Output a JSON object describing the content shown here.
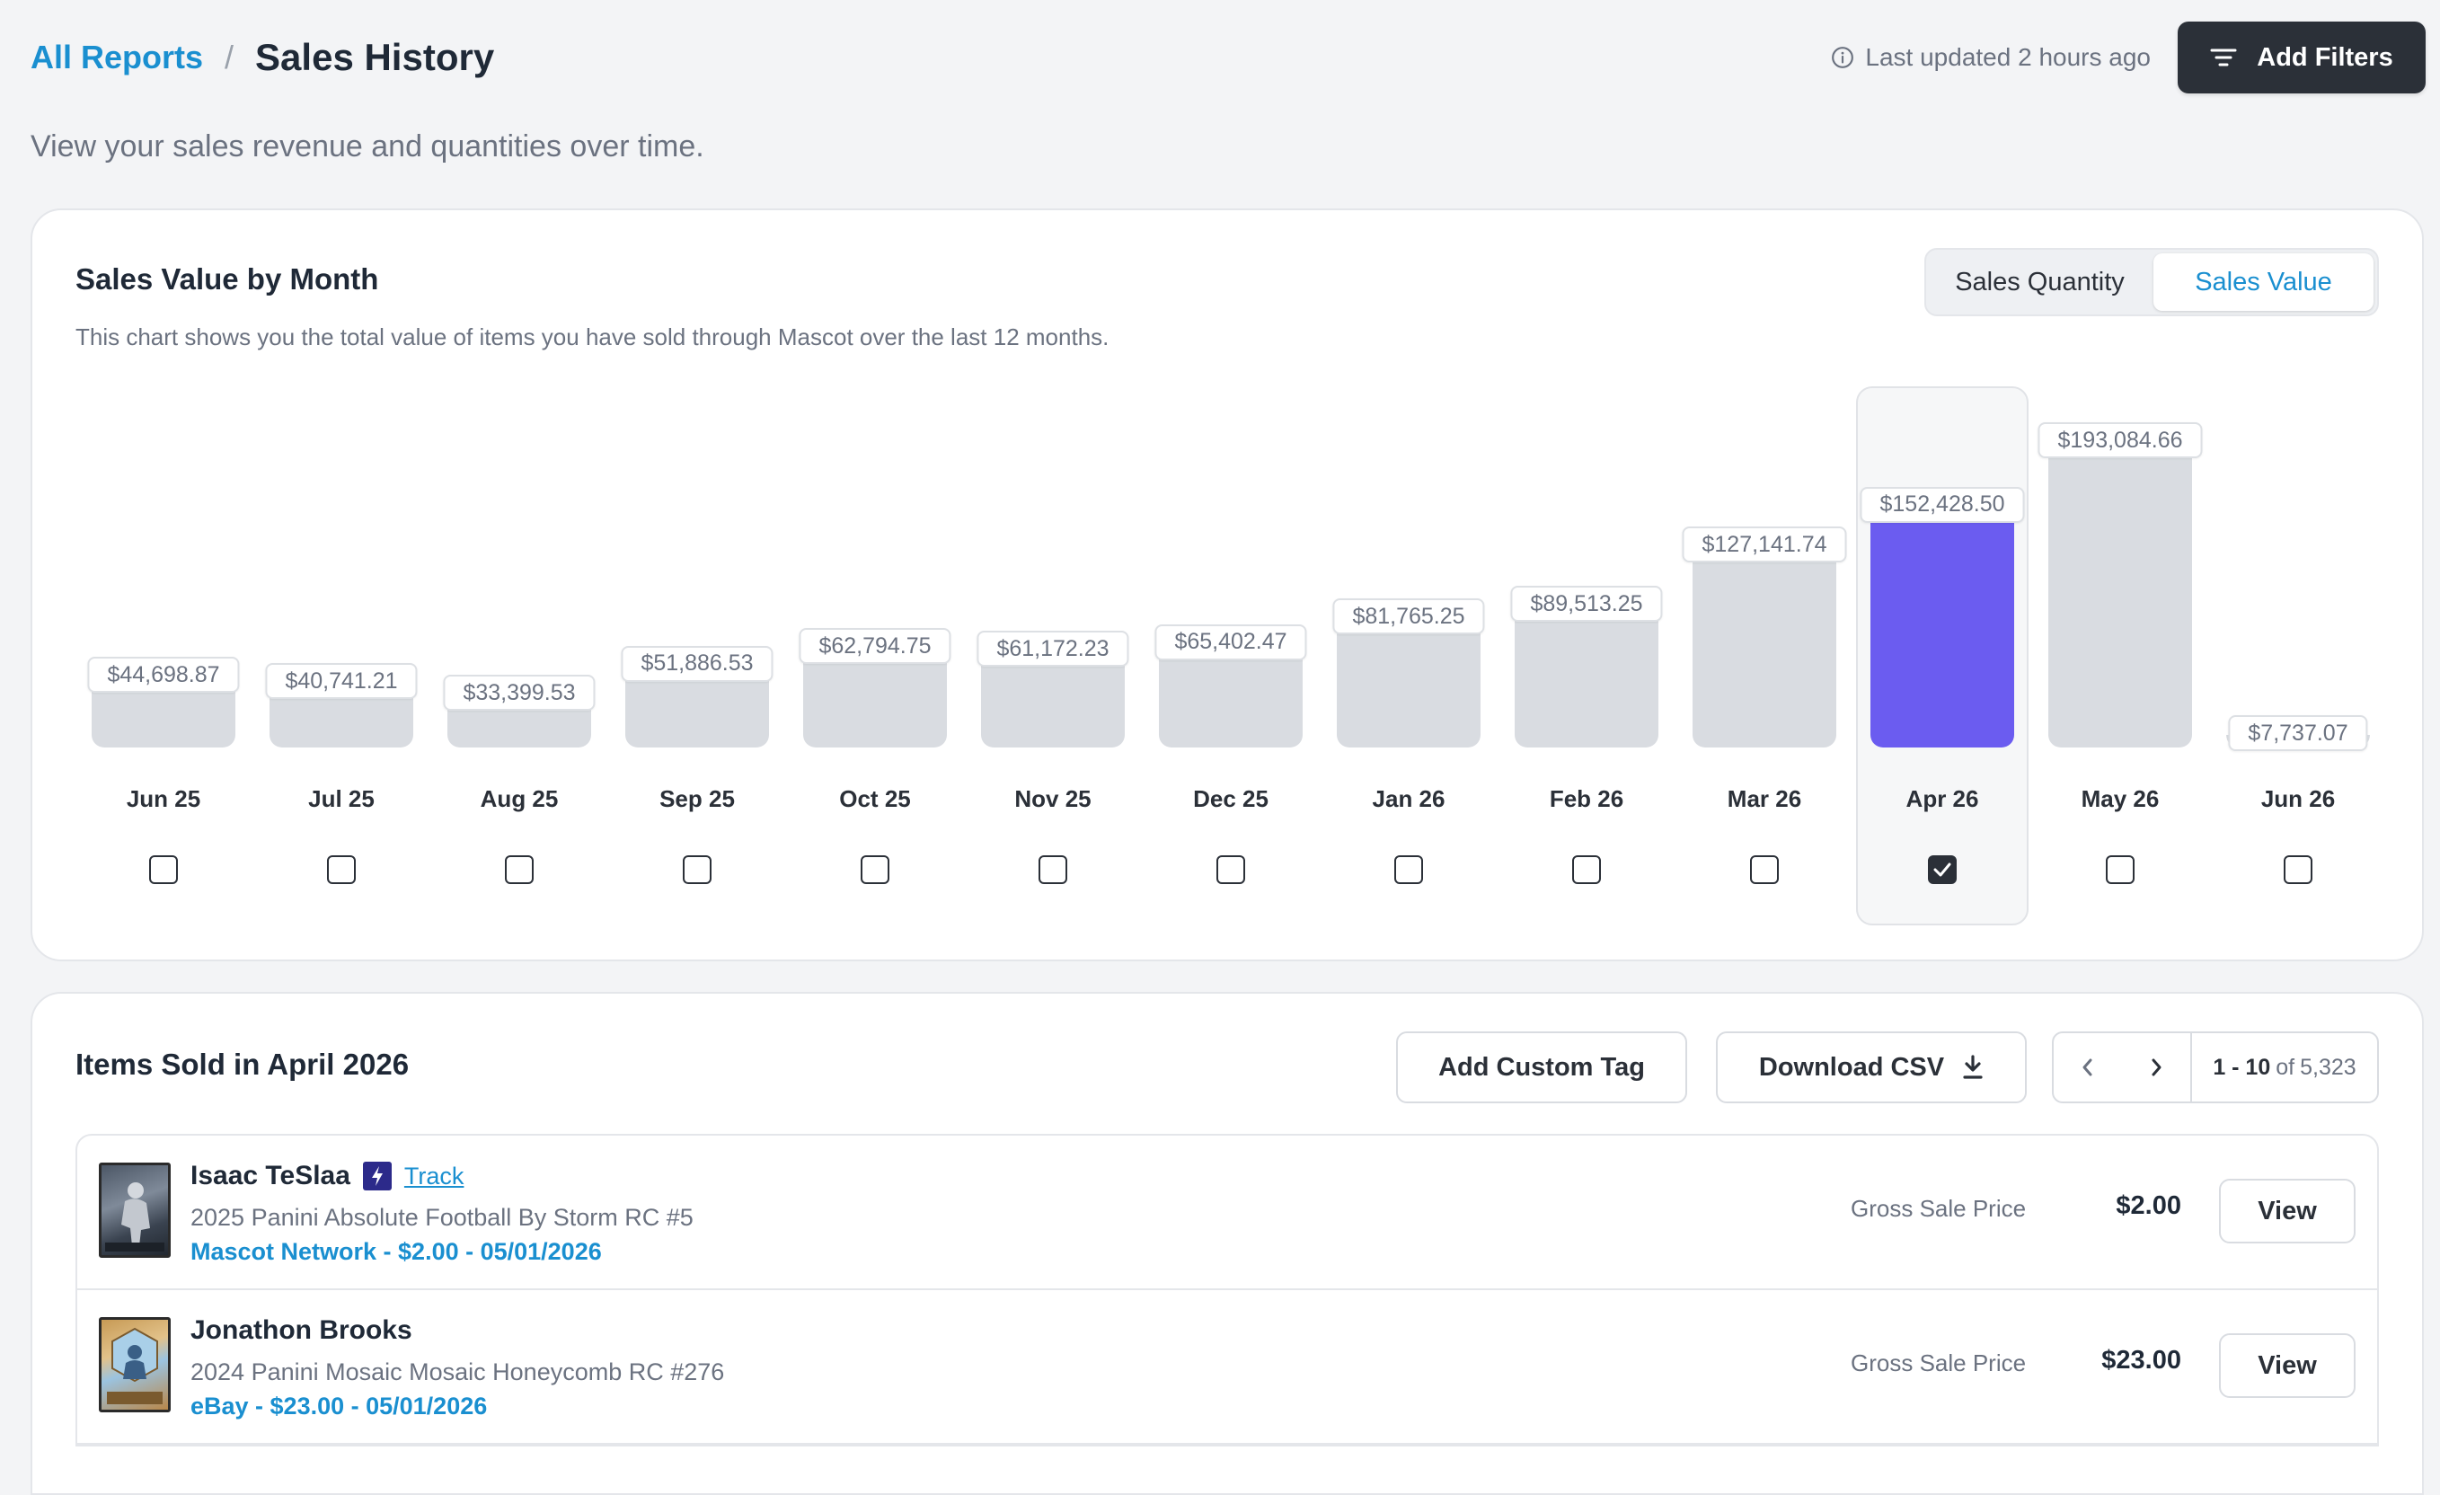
{
  "header": {
    "breadcrumb_link": "All Reports",
    "breadcrumb_sep": "/",
    "title": "Sales History",
    "last_updated": "Last updated 2 hours ago",
    "add_filters": "Add Filters",
    "subtitle": "View your sales revenue and quantities over time."
  },
  "chart_card": {
    "title": "Sales Value by Month",
    "description": "This chart shows you the total value of items you have sold through Mascot over the last 12 months.",
    "toggle": {
      "quantity": "Sales Quantity",
      "value": "Sales Value",
      "active": "value"
    }
  },
  "chart_data": {
    "type": "bar",
    "categories": [
      "Jun 25",
      "Jul 25",
      "Aug 25",
      "Sep 25",
      "Oct 25",
      "Nov 25",
      "Dec 25",
      "Jan 26",
      "Feb 26",
      "Mar 26",
      "Apr 26",
      "May 26",
      "Jun 26"
    ],
    "values": [
      44698.87,
      40741.21,
      33399.53,
      51886.53,
      62794.75,
      61172.23,
      65402.47,
      81765.25,
      89513.25,
      127141.74,
      152428.5,
      193084.66,
      7737.07
    ],
    "labels": [
      "$44,698.87",
      "$40,741.21",
      "$33,399.53",
      "$51,886.53",
      "$62,794.75",
      "$61,172.23",
      "$65,402.47",
      "$81,765.25",
      "$89,513.25",
      "$127,141.74",
      "$152,428.50",
      "$193,084.66",
      "$7,737.07"
    ],
    "selected_index": 10,
    "colors": {
      "default": "#d9dce1",
      "selected": "#6b5cf0"
    },
    "legend": "none",
    "grid": false
  },
  "items_card": {
    "title": "Items Sold in April 2026",
    "add_tag": "Add Custom Tag",
    "download_csv": "Download CSV",
    "pager": {
      "range": "1 - 10",
      "of": "of",
      "total": "5,323"
    },
    "items": [
      {
        "name": "Isaac TeSlaa",
        "track": "Track",
        "subtitle": "2025 Panini Absolute Football By Storm RC #5",
        "source": "Mascot Network - $2.00 - 05/01/2026",
        "gross_label": "Gross Sale Price",
        "price": "$2.00",
        "view": "View"
      },
      {
        "name": "Jonathon Brooks",
        "subtitle": "2024 Panini Mosaic Mosaic Honeycomb RC #276",
        "source": "eBay - $23.00 - 05/01/2026",
        "gross_label": "Gross Sale Price",
        "price": "$23.00",
        "view": "View"
      }
    ]
  }
}
